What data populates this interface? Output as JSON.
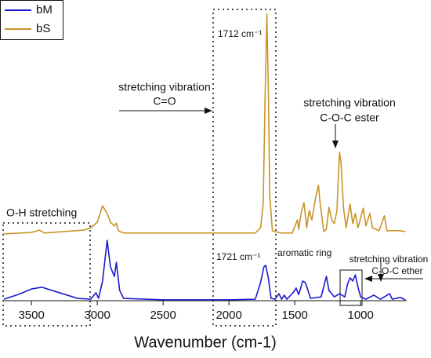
{
  "chart_data": {
    "type": "line",
    "xlabel": "Wavenumber (cm-1)",
    "xlim": [
      3715,
      650
    ],
    "xticks": [
      3500,
      3000,
      2500,
      2000,
      1500,
      1000
    ],
    "ylim": [
      0,
      100
    ],
    "series": [
      {
        "name": "bM",
        "color": "#1a1ad0",
        "x": [
          3710,
          3600,
          3500,
          3420,
          3300,
          3150,
          3050,
          3010,
          2990,
          2960,
          2925,
          2900,
          2870,
          2855,
          2830,
          2800,
          2500,
          2000,
          1800,
          1760,
          1735,
          1721,
          1700,
          1680,
          1650,
          1620,
          1600,
          1580,
          1560,
          1510,
          1490,
          1470,
          1440,
          1420,
          1380,
          1300,
          1260,
          1240,
          1200,
          1160,
          1120,
          1100,
          1080,
          1060,
          1040,
          1020,
          1000,
          960,
          900,
          850,
          780,
          760,
          700,
          660
        ],
        "values": [
          0.5,
          2.1,
          4.0,
          4.6,
          2.9,
          0.8,
          0.5,
          2.7,
          0.8,
          6.7,
          20.6,
          11.5,
          8.3,
          13.1,
          3.5,
          0.8,
          0.3,
          0.3,
          0.5,
          6.2,
          11.5,
          12.1,
          7.5,
          0.8,
          0.5,
          2.4,
          0.5,
          1.9,
          0.5,
          2.9,
          4.3,
          2.1,
          6.7,
          6.2,
          0.8,
          1.3,
          8.3,
          3.5,
          1.3,
          2.4,
          1.3,
          5.6,
          7.8,
          6.7,
          8.8,
          4.6,
          1.3,
          0.5,
          1.9,
          0.5,
          2.4,
          0.5,
          1.1,
          0.3
        ]
      },
      {
        "name": "bS",
        "color": "#c8952a",
        "x": [
          3710,
          3500,
          3440,
          3400,
          3100,
          3050,
          3000,
          2960,
          2925,
          2900,
          2870,
          2855,
          2840,
          2800,
          2500,
          2000,
          1800,
          1760,
          1740,
          1725,
          1712,
          1700,
          1690,
          1670,
          1650,
          1600,
          1520,
          1480,
          1470,
          1450,
          1430,
          1410,
          1390,
          1370,
          1340,
          1320,
          1310,
          1300,
          1280,
          1260,
          1240,
          1220,
          1200,
          1180,
          1165,
          1160,
          1150,
          1130,
          1110,
          1080,
          1060,
          1040,
          1020,
          980,
          960,
          930,
          910,
          860,
          820,
          800,
          700,
          660
        ],
        "values": [
          22.8,
          23.3,
          24.1,
          23.1,
          24.1,
          24.9,
          26.8,
          32.4,
          29.8,
          26.8,
          25.5,
          26.5,
          23.9,
          23.1,
          23.1,
          23.1,
          23.1,
          24.9,
          33.0,
          70.5,
          97.9,
          70.5,
          35.7,
          23.9,
          23.6,
          23.1,
          23.1,
          27.6,
          24.4,
          30.3,
          33.5,
          24.9,
          30.8,
          27.6,
          35.7,
          39.4,
          34.3,
          30.8,
          23.6,
          24.4,
          31.9,
          27.6,
          26.3,
          30.8,
          46.4,
          50.7,
          47.7,
          31.6,
          24.9,
          33.0,
          26.3,
          29.8,
          24.9,
          31.6,
          25.5,
          29.8,
          24.9,
          23.9,
          29.0,
          23.9,
          23.9,
          23.6
        ]
      }
    ],
    "annotations": [
      "stretching vibration",
      "C=O",
      "stretching vibration",
      "C-O-C ester",
      "1712 cm⁻¹",
      "1721 cm⁻¹",
      "O-H stretching",
      "aromatic ring",
      "stretching vibration",
      "C-O-C ether"
    ]
  }
}
